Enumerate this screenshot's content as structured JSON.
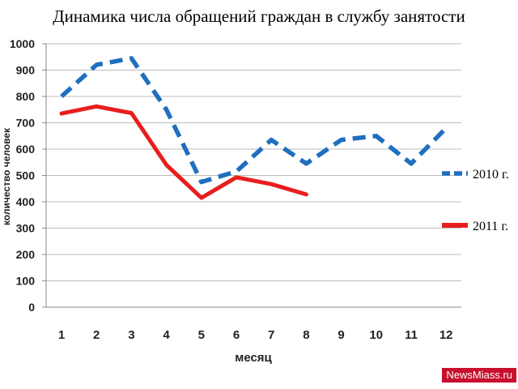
{
  "chart_data": {
    "type": "line",
    "title": "Динамика числа обращений граждан в службу занятости",
    "xlabel": "месяц",
    "ylabel": "количество человек",
    "categories": [
      "1",
      "2",
      "3",
      "4",
      "5",
      "6",
      "7",
      "8",
      "9",
      "10",
      "11",
      "12"
    ],
    "ylim": [
      0,
      1000
    ],
    "yticks": [
      0,
      100,
      200,
      300,
      400,
      500,
      600,
      700,
      800,
      900,
      1000
    ],
    "grid": true,
    "legend_position": "right",
    "series": [
      {
        "name": "2010 г.",
        "color": "#1f6fbf",
        "style": "dashed",
        "values": [
          800,
          920,
          945,
          750,
          475,
          515,
          635,
          545,
          635,
          650,
          545,
          680
        ]
      },
      {
        "name": "2011 г.",
        "color": "#e81e1e",
        "style": "solid",
        "values": [
          735,
          762,
          737,
          540,
          415,
          493,
          467,
          428,
          null,
          null,
          null,
          null
        ]
      }
    ]
  },
  "watermark": "NewsMiass.ru"
}
